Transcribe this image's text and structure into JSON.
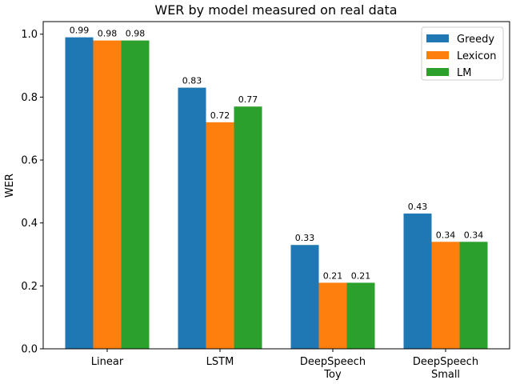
{
  "chart_data": {
    "type": "bar",
    "title": "WER by model measured on real data",
    "ylabel": "WER",
    "xlabel": "",
    "categories": [
      [
        "Linear"
      ],
      [
        "LSTM"
      ],
      [
        "DeepSpeech",
        "Toy"
      ],
      [
        "DeepSpeech",
        "Small"
      ]
    ],
    "series": [
      {
        "name": "Greedy",
        "color": "#1f77b4",
        "values": [
          0.99,
          0.83,
          0.33,
          0.43
        ]
      },
      {
        "name": "Lexicon",
        "color": "#ff7f0e",
        "values": [
          0.98,
          0.72,
          0.21,
          0.34
        ]
      },
      {
        "name": "LM",
        "color": "#2ca02c",
        "values": [
          0.98,
          0.77,
          0.21,
          0.34
        ]
      }
    ],
    "ylim": [
      0,
      1.04
    ],
    "yticks": [
      "0.0",
      "0.2",
      "0.4",
      "0.6",
      "0.8",
      "1.0"
    ],
    "legend_position": "top-right",
    "grid": false
  }
}
